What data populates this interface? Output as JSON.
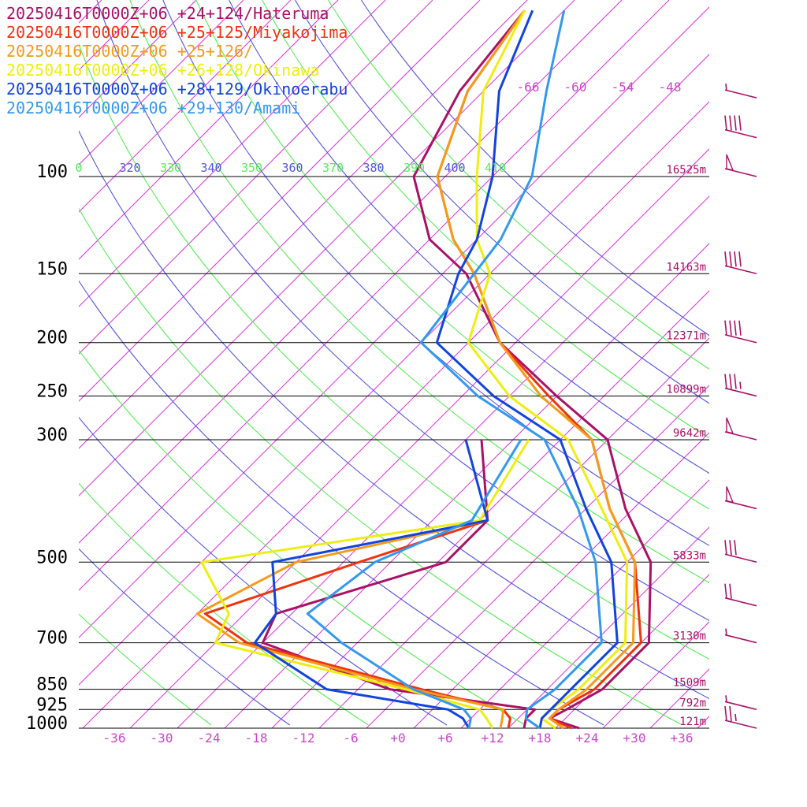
{
  "chart_data": {
    "type": "line",
    "title": "",
    "xlabel": "",
    "ylabel": "",
    "xlim": [
      -40,
      40
    ],
    "ylim": [
      1000,
      100
    ],
    "y_scale": "log",
    "skew": "45deg",
    "legend_placement": "top-left",
    "legend": [
      {
        "text": "20250416T0000Z+06 +24+124/Hateruma",
        "color": "#aa1166"
      },
      {
        "text": "20250416T0000Z+06 +25+125/Miyakojima",
        "color": "#ee3311"
      },
      {
        "text": "20250416T0000Z+06 +25+126/",
        "color": "#f59a1a"
      },
      {
        "text": "20250416T0000Z+06 +26+128/Okinawa",
        "color": "#eeee11"
      },
      {
        "text": "20250416T0000Z+06 +28+129/Okinoerabu",
        "color": "#1144dd"
      },
      {
        "text": "20250416T0000Z+06 +29+130/Amami",
        "color": "#3399ee"
      }
    ],
    "x_tick_labels": [
      "-36",
      "-30",
      "-24",
      "-18",
      "-12",
      "-6",
      "+0",
      "+6",
      "+12",
      "+18",
      "+24",
      "+30",
      "+36"
    ],
    "x_ticks": [
      -36,
      -30,
      -24,
      -18,
      -12,
      -6,
      0,
      6,
      12,
      18,
      24,
      30,
      36
    ],
    "pressure_levels": [
      {
        "p": 100,
        "label": "100",
        "height": "16525m"
      },
      {
        "p": 150,
        "label": "150",
        "height": "14163m"
      },
      {
        "p": 200,
        "label": "200",
        "height": "12371m"
      },
      {
        "p": 250,
        "label": "250",
        "height": "10899m"
      },
      {
        "p": 300,
        "label": "300",
        "height": "9642m"
      },
      {
        "p": 500,
        "label": "500",
        "height": "5833m"
      },
      {
        "p": 700,
        "label": "700",
        "height": "3130m"
      },
      {
        "p": 850,
        "label": "850",
        "height": "1509m"
      },
      {
        "p": 925,
        "label": "925",
        "height": "792m"
      },
      {
        "p": 1000,
        "label": "1000",
        "height": "121m"
      }
    ],
    "theta_labels": [
      {
        "text": "0",
        "color": "#55ee55"
      },
      {
        "text": "320",
        "color": "#5555dd"
      },
      {
        "text": "330",
        "color": "#55ee55"
      },
      {
        "text": "340",
        "color": "#5555dd"
      },
      {
        "text": "350",
        "color": "#55ee55"
      },
      {
        "text": "360",
        "color": "#5555dd"
      },
      {
        "text": "370",
        "color": "#55ee55"
      },
      {
        "text": "380",
        "color": "#5555dd"
      },
      {
        "text": "390",
        "color": "#55ee55"
      },
      {
        "text": "400",
        "color": "#5555dd"
      },
      {
        "text": "410",
        "color": "#55ee55"
      }
    ],
    "isotherm_top_labels": [
      "-66",
      "-60",
      "-54",
      "-48"
    ],
    "series": [
      {
        "name": "20250416T0000Z+06 +24+124/Hateruma",
        "color": "#aa1166",
        "width": 3,
        "temp": [
          [
            1000,
            23
          ],
          [
            960,
            18
          ],
          [
            925,
            19
          ],
          [
            850,
            21
          ],
          [
            700,
            21
          ],
          [
            500,
            11
          ],
          [
            400,
            1
          ],
          [
            300,
            -10
          ],
          [
            250,
            -22
          ],
          [
            200,
            -36
          ],
          [
            150,
            -49
          ],
          [
            130,
            -58
          ],
          [
            100,
            -68
          ],
          [
            70,
            -73
          ],
          [
            50,
            -75
          ]
        ],
        "dew": [
          [
            1000,
            16
          ],
          [
            960,
            15
          ],
          [
            925,
            15
          ],
          [
            850,
            -6
          ],
          [
            700,
            -28
          ],
          [
            620,
            -30
          ],
          [
            500,
            -15
          ],
          [
            420,
            -15
          ],
          [
            300,
            -26
          ]
        ]
      },
      {
        "name": "20250416T0000Z+06 +25+125/Miyakojima",
        "color": "#ee3311",
        "width": 3,
        "temp": [
          [
            1000,
            22
          ],
          [
            960,
            18
          ],
          [
            925,
            18
          ],
          [
            850,
            20
          ],
          [
            700,
            20
          ],
          [
            500,
            9
          ],
          [
            400,
            -1
          ],
          [
            300,
            -12
          ],
          [
            250,
            -23
          ],
          [
            200,
            -36
          ],
          [
            150,
            -48
          ],
          [
            130,
            -55
          ],
          [
            100,
            -65
          ],
          [
            70,
            -72
          ],
          [
            50,
            -75
          ]
        ],
        "dew": [
          [
            1000,
            14
          ],
          [
            960,
            13
          ],
          [
            925,
            11
          ],
          [
            850,
            -2
          ],
          [
            700,
            -30
          ],
          [
            620,
            -39
          ],
          [
            500,
            -26
          ],
          [
            420,
            -15
          ]
        ]
      },
      {
        "name": "20250416T0000Z+06 +25+126/",
        "color": "#f59a1a",
        "width": 3,
        "temp": [
          [
            1000,
            21
          ],
          [
            960,
            18
          ],
          [
            925,
            18
          ],
          [
            850,
            19
          ],
          [
            700,
            19
          ],
          [
            500,
            9
          ],
          [
            400,
            -1
          ],
          [
            300,
            -12
          ],
          [
            250,
            -24
          ],
          [
            200,
            -36
          ],
          [
            150,
            -48
          ],
          [
            130,
            -55
          ],
          [
            100,
            -65
          ],
          [
            70,
            -72
          ],
          [
            50,
            -75
          ]
        ],
        "dew": [
          [
            1000,
            13
          ],
          [
            960,
            12
          ],
          [
            925,
            11
          ],
          [
            850,
            -3
          ],
          [
            700,
            -31
          ],
          [
            620,
            -40
          ],
          [
            500,
            -34
          ],
          [
            420,
            -15
          ]
        ]
      },
      {
        "name": "20250416T0000Z+06 +26+128/Okinawa",
        "color": "#eeee11",
        "width": 3,
        "temp": [
          [
            1000,
            20
          ],
          [
            960,
            17
          ],
          [
            925,
            17
          ],
          [
            850,
            18
          ],
          [
            700,
            18
          ],
          [
            500,
            8
          ],
          [
            400,
            -2
          ],
          [
            300,
            -15
          ],
          [
            250,
            -28
          ],
          [
            200,
            -40
          ],
          [
            150,
            -46
          ],
          [
            130,
            -52
          ],
          [
            100,
            -60
          ],
          [
            70,
            -70
          ],
          [
            50,
            -75
          ]
        ],
        "dew": [
          [
            1000,
            12
          ],
          [
            960,
            10
          ],
          [
            925,
            8
          ],
          [
            850,
            -4
          ],
          [
            700,
            -34
          ],
          [
            620,
            -36
          ],
          [
            500,
            -46
          ],
          [
            420,
            -16
          ],
          [
            300,
            -20
          ]
        ]
      },
      {
        "name": "20250416T0000Z+06 +28+129/Okinoerabu",
        "color": "#1144dd",
        "width": 3,
        "temp": [
          [
            1000,
            18
          ],
          [
            960,
            17
          ],
          [
            925,
            17
          ],
          [
            850,
            17
          ],
          [
            700,
            17
          ],
          [
            500,
            6
          ],
          [
            400,
            -4
          ],
          [
            300,
            -16
          ],
          [
            250,
            -30
          ],
          [
            200,
            -44
          ],
          [
            150,
            -50
          ],
          [
            130,
            -52
          ],
          [
            100,
            -58
          ],
          [
            70,
            -68
          ],
          [
            50,
            -74
          ]
        ],
        "dew": [
          [
            1000,
            9
          ],
          [
            960,
            7
          ],
          [
            925,
            4
          ],
          [
            850,
            -14
          ],
          [
            700,
            -29
          ],
          [
            620,
            -30
          ],
          [
            500,
            -37
          ],
          [
            420,
            -15
          ],
          [
            300,
            -28
          ]
        ]
      },
      {
        "name": "20250416T0000Z+06 +29+130/Amami",
        "color": "#3399ee",
        "width": 3,
        "temp": [
          [
            1000,
            18
          ],
          [
            960,
            15
          ],
          [
            925,
            14
          ],
          [
            850,
            15
          ],
          [
            700,
            15
          ],
          [
            500,
            4
          ],
          [
            400,
            -5
          ],
          [
            300,
            -18
          ],
          [
            250,
            -32
          ],
          [
            200,
            -46
          ],
          [
            150,
            -48
          ],
          [
            130,
            -49
          ],
          [
            100,
            -53
          ],
          [
            70,
            -62
          ],
          [
            50,
            -70
          ]
        ],
        "dew": [
          [
            1000,
            9
          ],
          [
            960,
            8
          ],
          [
            925,
            6
          ],
          [
            850,
            -3
          ],
          [
            700,
            -18
          ],
          [
            620,
            -26
          ],
          [
            500,
            -24
          ],
          [
            420,
            -17
          ],
          [
            300,
            -21
          ]
        ]
      }
    ],
    "wind_barbs": [
      {
        "p": 72,
        "color": "#aa1166",
        "flags": 0,
        "full": 0,
        "half": 1
      },
      {
        "p": 85,
        "color": "#aa1166",
        "flags": 0,
        "full": 4,
        "half": 0
      },
      {
        "p": 100,
        "color": "#aa1166",
        "flags": 1,
        "full": 0,
        "half": 0
      },
      {
        "p": 150,
        "color": "#aa1166",
        "flags": 0,
        "full": 4,
        "half": 0
      },
      {
        "p": 200,
        "color": "#aa1166",
        "flags": 0,
        "full": 4,
        "half": 0
      },
      {
        "p": 250,
        "color": "#aa1166",
        "flags": 0,
        "full": 3,
        "half": 1
      },
      {
        "p": 300,
        "color": "#aa1166",
        "flags": 1,
        "full": 0,
        "half": 0
      },
      {
        "p": 400,
        "color": "#aa1166",
        "flags": 1,
        "full": 0,
        "half": 0
      },
      {
        "p": 500,
        "color": "#aa1166",
        "flags": 0,
        "full": 3,
        "half": 0
      },
      {
        "p": 600,
        "color": "#aa1166",
        "flags": 0,
        "full": 2,
        "half": 0
      },
      {
        "p": 700,
        "color": "#aa1166",
        "flags": 0,
        "full": 0,
        "half": 1
      },
      {
        "p": 925,
        "color": "#aa1166",
        "flags": 0,
        "full": 0,
        "half": 1
      },
      {
        "p": 1000,
        "color": "#aa1166",
        "flags": 0,
        "full": 2,
        "half": 1
      }
    ]
  }
}
